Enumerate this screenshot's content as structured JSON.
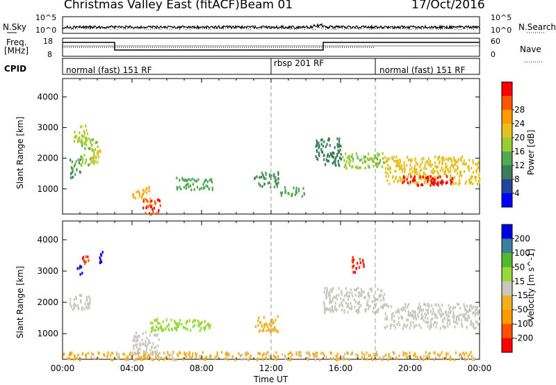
{
  "header": {
    "title": "Christmas Valley East (fitACF)",
    "beam": "Beam 01",
    "date": "17/Oct/2016"
  },
  "noise_panel": {
    "left_label": "N.Sky",
    "right_label": "N.Search",
    "left_ticks": [
      "10^5",
      "10^0"
    ],
    "right_ticks": [
      "10^5",
      "10^0"
    ]
  },
  "freq_panel": {
    "left_label_1": "Freq.",
    "left_label_2": "[MHz]",
    "right_label": "Nave",
    "left_ticks": [
      "18",
      "8"
    ],
    "right_ticks": [
      "60",
      "0"
    ]
  },
  "cpid": {
    "label": "CPID",
    "segments": [
      {
        "name": "normal (fast) 151 RF",
        "start_hour": 0,
        "end_hour": 12
      },
      {
        "name": "rbsp 201 RF",
        "start_hour": 12,
        "end_hour": 18
      },
      {
        "name": "normal (fast) 151 RF",
        "start_hour": 18,
        "end_hour": 24
      }
    ]
  },
  "colors": {
    "power": [
      "#0000ff",
      "#22449c",
      "#3a7d5a",
      "#52a852",
      "#9acc33",
      "#e6c020",
      "#ff9a00",
      "#ff5500",
      "#ff0000"
    ],
    "velocity": [
      "#ff0000",
      "#ff5000",
      "#ff9a00",
      "#f0b020",
      "#c8c8c0",
      "#98d838",
      "#52b830",
      "#3a7f9c",
      "#0000e0"
    ]
  },
  "chart_data": [
    {
      "type": "heatmap",
      "title": "",
      "xlabel": "",
      "ylabel": "Slant Range [km]",
      "x_ticks": [
        "00:00",
        "04:00",
        "08:00",
        "12:00",
        "16:00",
        "20:00",
        "00:00"
      ],
      "y_ticks": [
        "1000",
        "2000",
        "3000",
        "4000"
      ],
      "xlim_hours": [
        0,
        24
      ],
      "ylim_km": [
        180,
        4600
      ],
      "colorbar": {
        "label": "Power [dB]",
        "ticks": [
          "4",
          "8",
          "12",
          "16",
          "20",
          "24",
          "28"
        ],
        "range": [
          0,
          30
        ]
      },
      "regions": [
        {
          "t0": 0.4,
          "t1": 1.0,
          "r0": 1400,
          "r1": 2000,
          "value": 10
        },
        {
          "t0": 1.0,
          "t1": 2.0,
          "r0": 1800,
          "r1": 2700,
          "value": 14
        },
        {
          "t0": 0.6,
          "t1": 1.4,
          "r0": 2500,
          "r1": 3100,
          "value": 16
        },
        {
          "t0": 1.6,
          "t1": 2.2,
          "r0": 1900,
          "r1": 2300,
          "value": 18
        },
        {
          "t0": 4.0,
          "t1": 5.0,
          "r0": 700,
          "r1": 1100,
          "value": 20
        },
        {
          "t0": 4.6,
          "t1": 5.6,
          "r0": 200,
          "r1": 700,
          "value": 26
        },
        {
          "t0": 6.5,
          "t1": 8.6,
          "r0": 1000,
          "r1": 1400,
          "value": 12
        },
        {
          "t0": 11.0,
          "t1": 12.4,
          "r0": 1100,
          "r1": 1600,
          "value": 10
        },
        {
          "t0": 12.5,
          "t1": 14.0,
          "r0": 800,
          "r1": 1100,
          "value": 12
        },
        {
          "t0": 14.5,
          "t1": 16.0,
          "r0": 1800,
          "r1": 2700,
          "value": 8
        },
        {
          "t0": 16.0,
          "t1": 18.5,
          "r0": 1700,
          "r1": 2200,
          "value": 14
        },
        {
          "t0": 18.5,
          "t1": 24.0,
          "r0": 1200,
          "r1": 2100,
          "value": 18
        },
        {
          "t0": 19.5,
          "t1": 22.5,
          "r0": 1150,
          "r1": 1450,
          "value": 28
        }
      ]
    },
    {
      "type": "heatmap",
      "title": "",
      "xlabel": "Time UT",
      "ylabel": "Slant Range [km]",
      "x_ticks": [
        "00:00",
        "04:00",
        "08:00",
        "12:00",
        "16:00",
        "20:00",
        "00:00"
      ],
      "y_ticks": [
        "1000",
        "2000",
        "3000",
        "4000"
      ],
      "xlim_hours": [
        0,
        24
      ],
      "ylim_km": [
        180,
        4600
      ],
      "colorbar": {
        "label": "Velocity [m s^-1]",
        "ticks": [
          "200",
          "100",
          "50",
          "15",
          "-15",
          "-50",
          "-100",
          "-200"
        ],
        "range": [
          -250,
          250
        ]
      },
      "regions": [
        {
          "t0": 0.3,
          "t1": 1.6,
          "r0": 1800,
          "r1": 2300,
          "value": 0
        },
        {
          "t0": 1.1,
          "t1": 1.5,
          "r0": 3200,
          "r1": 3600,
          "value": -200
        },
        {
          "t0": 0.8,
          "t1": 1.1,
          "r0": 2900,
          "r1": 3200,
          "value": 220
        },
        {
          "t0": 2.0,
          "t1": 2.3,
          "r0": 3200,
          "r1": 3650,
          "value": 220
        },
        {
          "t0": 4.0,
          "t1": 5.5,
          "r0": 200,
          "r1": 1100,
          "value": 0
        },
        {
          "t0": 5.0,
          "t1": 8.5,
          "r0": 1100,
          "r1": 1500,
          "value": 60
        },
        {
          "t0": 11.0,
          "t1": 12.4,
          "r0": 1100,
          "r1": 1600,
          "value": -50
        },
        {
          "t0": 0.0,
          "t1": 24.0,
          "r0": 200,
          "r1": 450,
          "value": -40
        },
        {
          "t0": 15.0,
          "t1": 18.5,
          "r0": 1700,
          "r1": 2500,
          "value": 0
        },
        {
          "t0": 18.5,
          "t1": 24.0,
          "r0": 1200,
          "r1": 2000,
          "value": 0
        },
        {
          "t0": 16.6,
          "t1": 17.3,
          "r0": 3000,
          "r1": 3500,
          "value": -200
        }
      ]
    }
  ]
}
